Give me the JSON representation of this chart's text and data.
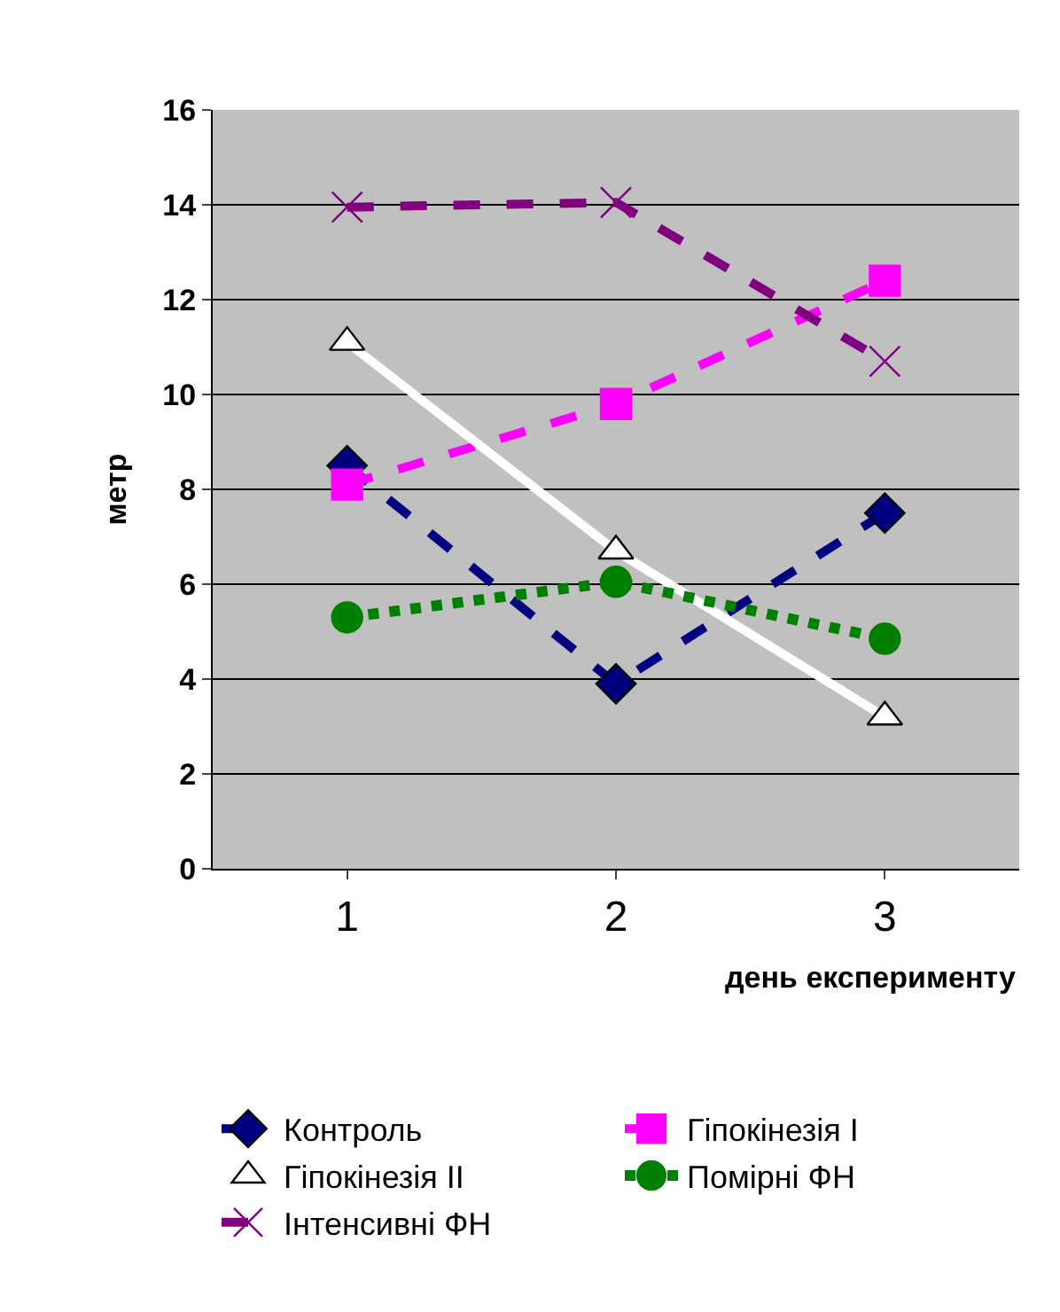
{
  "chart_data": {
    "type": "line",
    "categories": [
      "1",
      "2",
      "3"
    ],
    "xlabel": "день експерименту",
    "ylabel": "метр",
    "ylim": [
      0,
      16
    ],
    "yticks": [
      0,
      2,
      4,
      6,
      8,
      10,
      12,
      14,
      16
    ],
    "grid": "y",
    "legend": "bottom",
    "series": [
      {
        "name": "Контроль",
        "color": "#000080",
        "marker": "diamond",
        "line_style": "dashed",
        "values": [
          8.5,
          3.9,
          7.5
        ]
      },
      {
        "name": "Гіпокінезія I",
        "color": "#ff00ff",
        "marker": "square",
        "line_style": "dashed",
        "values": [
          8.1,
          9.8,
          12.4
        ]
      },
      {
        "name": "Гіпокінезія II",
        "color": "#ffffff",
        "marker": "triangle",
        "line_style": "solid",
        "values": [
          11.1,
          6.7,
          3.2
        ]
      },
      {
        "name": "Помірні ФН",
        "color": "#008000",
        "marker": "circle",
        "line_style": "dotted",
        "values": [
          5.3,
          6.05,
          4.85
        ]
      },
      {
        "name": "Інтенсивні ФН",
        "color": "#800080",
        "marker": "cross",
        "line_style": "dashed",
        "values": [
          13.95,
          14.05,
          10.7
        ]
      }
    ]
  }
}
